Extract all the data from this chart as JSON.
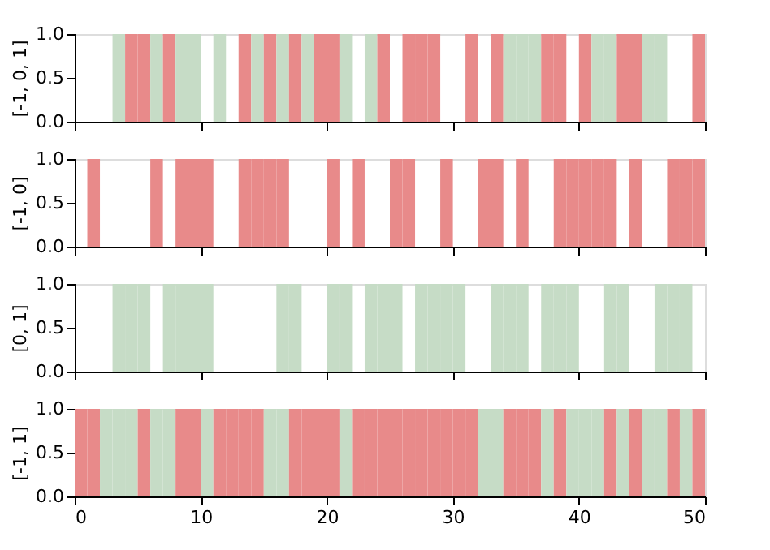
{
  "chart_data": [
    {
      "type": "bar",
      "ylabel": "[-1, 0, 1]",
      "xlim": [
        0,
        50
      ],
      "xticks": [
        0,
        10,
        20,
        30,
        40,
        50
      ],
      "ylim": [
        0,
        1
      ],
      "yticks": [
        {
          "value": 0,
          "label": "0.0"
        },
        {
          "value": 0.5,
          "label": "0.5"
        },
        {
          "value": 1,
          "label": "1.0"
        }
      ],
      "tick_labels": "y",
      "grid": false,
      "x": [
        3.5,
        4.5,
        5.5,
        6.5,
        7.5,
        8.5,
        9.5,
        11.5,
        13.5,
        14.5,
        15.5,
        16.5,
        17.5,
        18.5,
        19.5,
        20.5,
        21.5,
        23.5,
        24.5,
        26.5,
        27.5,
        28.5,
        31.5,
        33.5,
        34.5,
        35.5,
        36.5,
        37.5,
        38.5,
        40.5,
        41.5,
        42.5,
        43.5,
        44.5,
        45.5,
        46.5,
        49.5
      ],
      "values": [
        1,
        1,
        1,
        1,
        1,
        1,
        1,
        1,
        1,
        1,
        1,
        1,
        1,
        1,
        1,
        1,
        1,
        1,
        1,
        1,
        1,
        1,
        1,
        1,
        1,
        1,
        1,
        1,
        1,
        1,
        1,
        1,
        1,
        1,
        1,
        1,
        1
      ],
      "colors": [
        "#c6dcc6",
        "#e88a8a",
        "#e88a8a",
        "#c6dcc6",
        "#e88a8a",
        "#c6dcc6",
        "#c6dcc6",
        "#c6dcc6",
        "#e88a8a",
        "#c6dcc6",
        "#e88a8a",
        "#c6dcc6",
        "#e88a8a",
        "#c6dcc6",
        "#e88a8a",
        "#e88a8a",
        "#c6dcc6",
        "#c6dcc6",
        "#e88a8a",
        "#e88a8a",
        "#e88a8a",
        "#e88a8a",
        "#e88a8a",
        "#e88a8a",
        "#c6dcc6",
        "#c6dcc6",
        "#c6dcc6",
        "#e88a8a",
        "#e88a8a",
        "#e88a8a",
        "#c6dcc6",
        "#c6dcc6",
        "#e88a8a",
        "#e88a8a",
        "#c6dcc6",
        "#c6dcc6",
        "#e88a8a"
      ]
    },
    {
      "type": "bar",
      "ylabel": "[-1, 0]",
      "xlim": [
        0,
        50
      ],
      "xticks": [
        0,
        10,
        20,
        30,
        40,
        50
      ],
      "ylim": [
        0,
        1
      ],
      "yticks": [
        {
          "value": 0,
          "label": "0.0"
        },
        {
          "value": 0.5,
          "label": "0.5"
        },
        {
          "value": 1,
          "label": "1.0"
        }
      ],
      "tick_labels": "y",
      "grid": false,
      "color": "#e88a8a",
      "x": [
        1.5,
        6.5,
        8.5,
        9.5,
        10.5,
        13.5,
        14.5,
        15.5,
        16.5,
        20.5,
        22.5,
        25.5,
        26.5,
        29.5,
        32.5,
        33.5,
        35.5,
        38.5,
        39.5,
        40.5,
        41.5,
        42.5,
        44.5,
        47.5,
        48.5,
        49.5
      ],
      "values": [
        1,
        1,
        1,
        1,
        1,
        1,
        1,
        1,
        1,
        1,
        1,
        1,
        1,
        1,
        1,
        1,
        1,
        1,
        1,
        1,
        1,
        1,
        1,
        1,
        1,
        1
      ]
    },
    {
      "type": "bar",
      "ylabel": "[0, 1]",
      "xlim": [
        0,
        50
      ],
      "xticks": [
        0,
        10,
        20,
        30,
        40,
        50
      ],
      "ylim": [
        0,
        1
      ],
      "yticks": [
        {
          "value": 0,
          "label": "0.0"
        },
        {
          "value": 0.5,
          "label": "0.5"
        },
        {
          "value": 1,
          "label": "1.0"
        }
      ],
      "tick_labels": "y",
      "grid": false,
      "color": "#c6dcc6",
      "x": [
        3.5,
        4.5,
        5.5,
        7.5,
        8.5,
        9.5,
        10.5,
        16.5,
        17.5,
        20.5,
        21.5,
        23.5,
        24.5,
        25.5,
        27.5,
        28.5,
        29.5,
        30.5,
        33.5,
        34.5,
        35.5,
        37.5,
        38.5,
        39.5,
        42.5,
        43.5,
        46.5,
        47.5,
        48.5
      ],
      "values": [
        1,
        1,
        1,
        1,
        1,
        1,
        1,
        1,
        1,
        1,
        1,
        1,
        1,
        1,
        1,
        1,
        1,
        1,
        1,
        1,
        1,
        1,
        1,
        1,
        1,
        1,
        1,
        1,
        1
      ]
    },
    {
      "type": "bar",
      "ylabel": "[-1, 1]",
      "xlim": [
        0,
        50
      ],
      "xticks": [
        0,
        10,
        20,
        30,
        40,
        50
      ],
      "ylim": [
        0,
        1
      ],
      "yticks": [
        {
          "value": 0,
          "label": "0.0"
        },
        {
          "value": 0.5,
          "label": "0.5"
        },
        {
          "value": 1,
          "label": "1.0"
        }
      ],
      "grid": false,
      "x": [
        0.5,
        1.5,
        2.5,
        3.5,
        4.5,
        5.5,
        6.5,
        7.5,
        8.5,
        9.5,
        10.5,
        11.5,
        12.5,
        13.5,
        14.5,
        15.5,
        16.5,
        17.5,
        18.5,
        19.5,
        20.5,
        21.5,
        22.5,
        23.5,
        24.5,
        25.5,
        26.5,
        27.5,
        28.5,
        29.5,
        30.5,
        31.5,
        32.5,
        33.5,
        34.5,
        35.5,
        36.5,
        37.5,
        38.5,
        39.5,
        40.5,
        41.5,
        42.5,
        43.5,
        44.5,
        45.5,
        46.5,
        47.5,
        48.5,
        49.5
      ],
      "values": [
        1,
        1,
        1,
        1,
        1,
        1,
        1,
        1,
        1,
        1,
        1,
        1,
        1,
        1,
        1,
        1,
        1,
        1,
        1,
        1,
        1,
        1,
        1,
        1,
        1,
        1,
        1,
        1,
        1,
        1,
        1,
        1,
        1,
        1,
        1,
        1,
        1,
        1,
        1,
        1,
        1,
        1,
        1,
        1,
        1,
        1,
        1,
        1,
        1,
        1
      ],
      "colors": [
        "#e88a8a",
        "#e88a8a",
        "#c6dcc6",
        "#c6dcc6",
        "#c6dcc6",
        "#e88a8a",
        "#c6dcc6",
        "#c6dcc6",
        "#e88a8a",
        "#e88a8a",
        "#c6dcc6",
        "#e88a8a",
        "#e88a8a",
        "#e88a8a",
        "#e88a8a",
        "#c6dcc6",
        "#c6dcc6",
        "#e88a8a",
        "#e88a8a",
        "#e88a8a",
        "#e88a8a",
        "#c6dcc6",
        "#e88a8a",
        "#e88a8a",
        "#e88a8a",
        "#e88a8a",
        "#e88a8a",
        "#e88a8a",
        "#e88a8a",
        "#e88a8a",
        "#e88a8a",
        "#e88a8a",
        "#c6dcc6",
        "#c6dcc6",
        "#e88a8a",
        "#e88a8a",
        "#e88a8a",
        "#c6dcc6",
        "#e88a8a",
        "#c6dcc6",
        "#c6dcc6",
        "#c6dcc6",
        "#e88a8a",
        "#c6dcc6",
        "#e88a8a",
        "#c6dcc6",
        "#c6dcc6",
        "#e88a8a",
        "#c6dcc6",
        "#e88a8a"
      ]
    }
  ]
}
